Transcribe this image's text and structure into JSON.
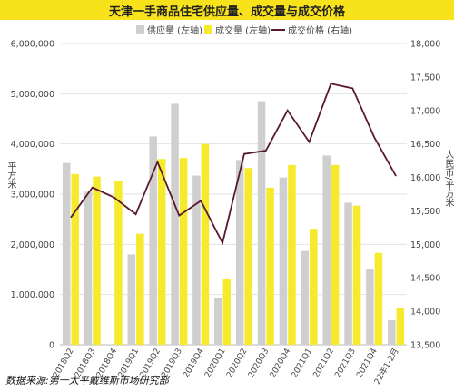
{
  "title": "天津一手商品住宅供应量、成交量与成交价格",
  "source": "数据来源:第一太平戴维斯市场研究部",
  "colors": {
    "supply": "#CFCFCF",
    "deal": "#F5EA2C",
    "price": "#5A1A2E",
    "title_bg": "#F7E21B"
  },
  "chart_data": {
    "type": "bar",
    "categories": [
      "2018Q2",
      "2018Q3",
      "2018Q4",
      "2019Q1",
      "2019Q2",
      "2019Q3",
      "2019Q4",
      "2020Q1",
      "2020Q2",
      "2020Q3",
      "2020Q4",
      "2021Q1",
      "2021Q2",
      "2021Q3",
      "2021Q4",
      "22年1-2月"
    ],
    "series": [
      {
        "name": "供应量 (左轴)",
        "kind": "bar",
        "axis": "left",
        "values": [
          3620000,
          3050000,
          0,
          1800000,
          4150000,
          4800000,
          3370000,
          930000,
          3680000,
          4850000,
          3330000,
          1870000,
          3770000,
          2830000,
          1500000,
          490000
        ]
      },
      {
        "name": "成交量 (左轴)",
        "kind": "bar",
        "axis": "left",
        "values": [
          3400000,
          3350000,
          3260000,
          2210000,
          3700000,
          3720000,
          4000000,
          1310000,
          3520000,
          3130000,
          3580000,
          2310000,
          3580000,
          2770000,
          1830000,
          740000
        ]
      },
      {
        "name": "成交价格 (右轴)",
        "kind": "line",
        "axis": "right",
        "values": [
          15400,
          15850,
          15700,
          15450,
          16230,
          15430,
          15650,
          15020,
          16350,
          16400,
          17000,
          16530,
          17400,
          17330,
          16600,
          16020
        ]
      }
    ],
    "y_left": {
      "label": "平方米",
      "min": 0,
      "max": 6000000,
      "ticks": [
        "0",
        "1,000,000",
        "2,000,000",
        "3,000,000",
        "4,000,000",
        "5,000,000",
        "6,000,000"
      ]
    },
    "y_right": {
      "label": "人民币/平方米",
      "min": 13500,
      "max": 18000,
      "ticks": [
        "13,500",
        "14,000",
        "14,500",
        "15,000",
        "15,500",
        "16,000",
        "16,500",
        "17,000",
        "17,500",
        "18,000"
      ]
    },
    "grid": true,
    "legend_position": "top"
  }
}
